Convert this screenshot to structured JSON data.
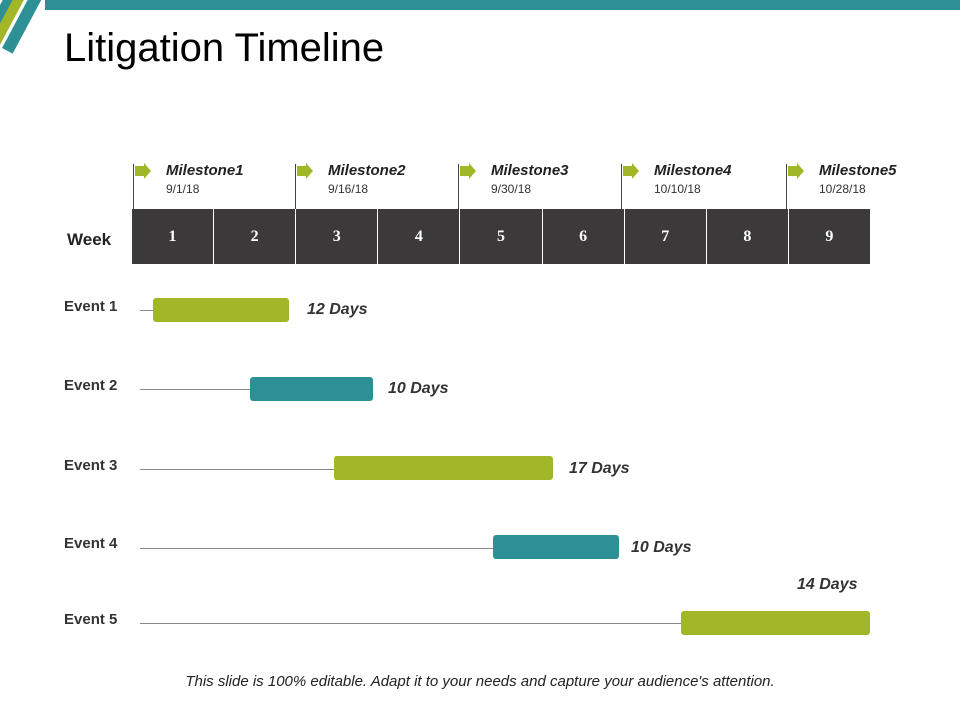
{
  "title": "Litigation Timeline",
  "colors": {
    "teal": "#2c9095",
    "green": "#a2b728",
    "dark": "#3b3939"
  },
  "milestones": [
    {
      "name": "Milestone1",
      "date": "9/1/18",
      "icon": "flag-arrow-icon"
    },
    {
      "name": "Milestone2",
      "date": "9/16/18",
      "icon": "flag-arrow-icon"
    },
    {
      "name": "Milestone3",
      "date": "9/30/18",
      "icon": "flag-arrow-icon"
    },
    {
      "name": "Milestone4",
      "date": "10/10/18",
      "icon": "flag-arrow-icon"
    },
    {
      "name": "Milestone5",
      "date": "10/28/18",
      "icon": "flag-arrow-icon"
    }
  ],
  "week": {
    "label": "Week",
    "numbers": [
      "1",
      "2",
      "3",
      "4",
      "5",
      "6",
      "7",
      "8",
      "9"
    ]
  },
  "events": [
    {
      "label": "Event 1",
      "days": "12 Days",
      "color": "#a2b728"
    },
    {
      "label": "Event 2",
      "days": "10 Days",
      "color": "#2c9095"
    },
    {
      "label": "Event 3",
      "days": "17 Days",
      "color": "#a2b728"
    },
    {
      "label": "Event 4",
      "days": "10 Days",
      "color": "#2c9095"
    },
    {
      "label": "Event 5",
      "days": "14 Days",
      "color": "#a2b728"
    }
  ],
  "footer": "This slide is 100% editable. Adapt it to your needs and capture your audience's attention."
}
